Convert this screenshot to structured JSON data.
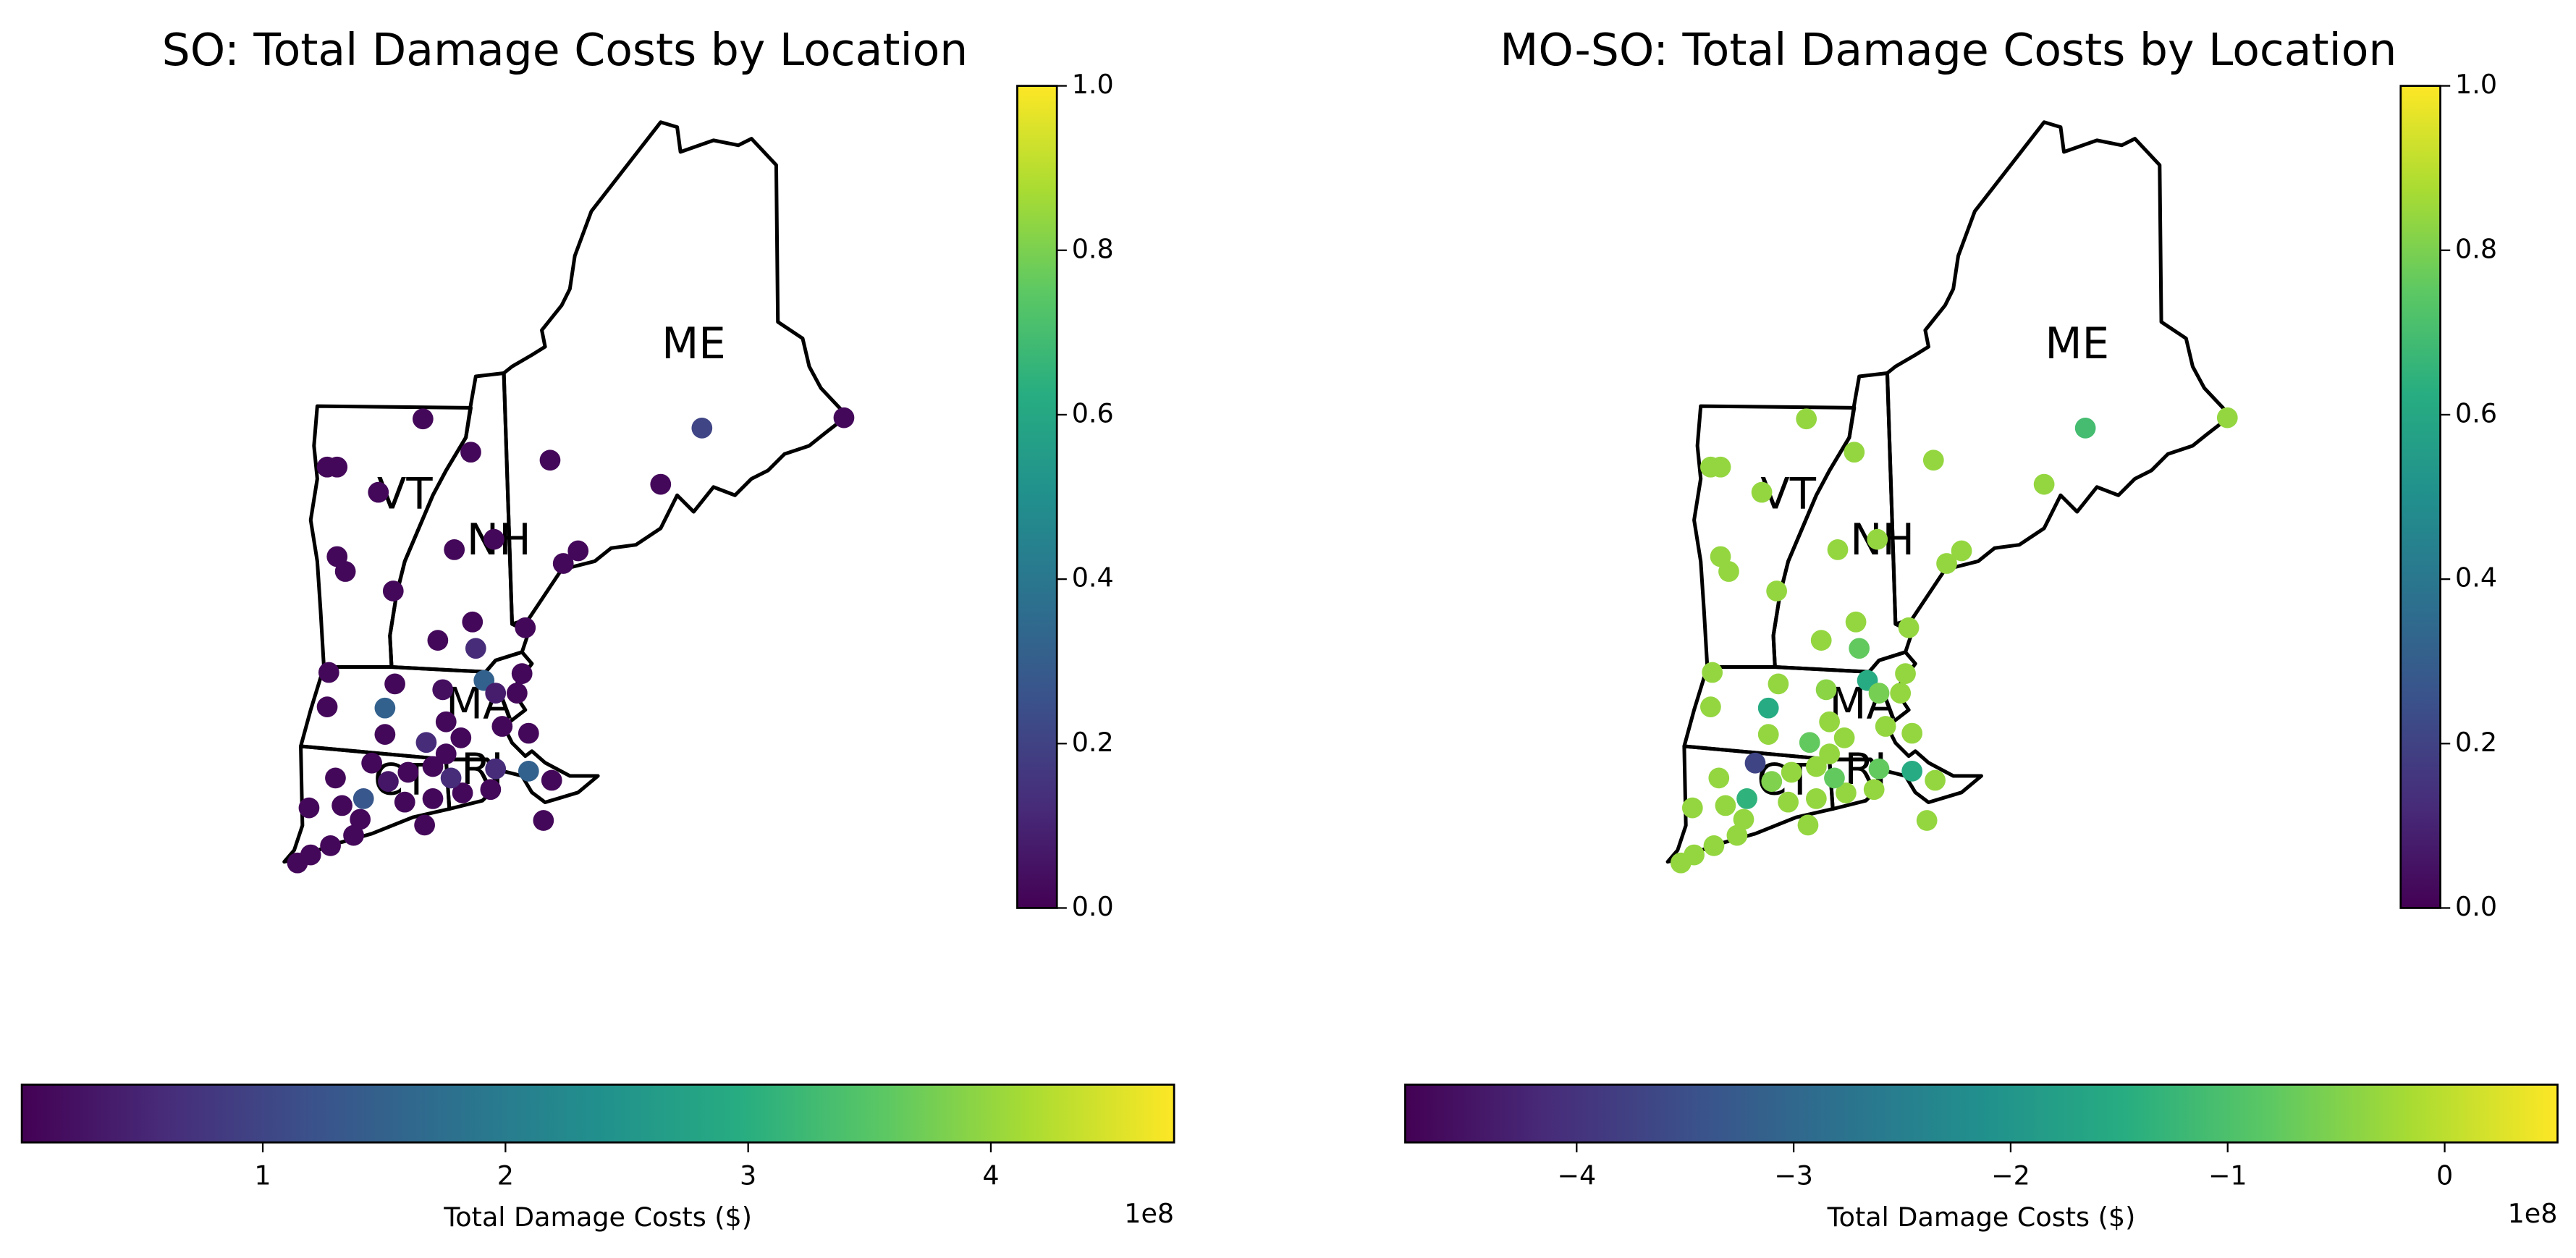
{
  "chart_data": [
    {
      "type": "scatter",
      "title": "SO: Total Damage Costs by Location",
      "colormap": "viridis",
      "lon": [
        -72.08,
        -73.24,
        -73.12,
        -71.5,
        -70.54,
        -68.7,
        -66.98,
        -69.2,
        -72.62,
        -71.22,
        -71.7,
        -73.12,
        -73.02,
        -70.38,
        -70.2,
        -72.44,
        -71.48,
        -71.9,
        -71.44,
        -70.84,
        -73.22,
        -72.42,
        -71.34,
        -70.88,
        -73.24,
        -72.54,
        -71.84,
        -70.94,
        -71.8,
        -71.12,
        -72.54,
        -72.7,
        -72.04,
        -71.62,
        -70.8,
        -71.8,
        -72.26,
        -73.14,
        -71.96,
        -70.8,
        -70.52,
        -71.2,
        -71.6,
        -71.26,
        -72.8,
        -73.46,
        -73.06,
        -72.3,
        -71.96,
        -72.84,
        -72.06,
        -70.62,
        -72.92,
        -73.2,
        -73.44,
        -73.6,
        -71.2,
        -71.74,
        -72.5
      ],
      "lat": [
        44.86,
        44.44,
        44.44,
        44.57,
        44.5,
        44.78,
        44.87,
        44.29,
        44.22,
        43.81,
        43.72,
        43.66,
        43.53,
        43.6,
        43.71,
        43.36,
        43.09,
        42.93,
        42.86,
        43.04,
        42.65,
        42.55,
        42.58,
        42.64,
        42.35,
        42.34,
        42.5,
        42.47,
        42.22,
        42.18,
        42.11,
        41.86,
        42.04,
        42.08,
        42.12,
        41.94,
        41.78,
        41.73,
        41.83,
        41.79,
        41.71,
        41.81,
        41.6,
        41.63,
        41.55,
        41.47,
        41.49,
        41.52,
        41.55,
        41.37,
        41.32,
        41.36,
        41.23,
        41.14,
        41.06,
        40.99,
        42.47,
        41.73,
        41.7
      ],
      "values": [
        10000000,
        10000000,
        10000000,
        10000000,
        10000000,
        100000000,
        10000000,
        10000000,
        10000000,
        10000000,
        10000000,
        10000000,
        10000000,
        10000000,
        10000000,
        10000000,
        10000000,
        10000000,
        60000000,
        10000000,
        10000000,
        10000000,
        150000000,
        10000000,
        10000000,
        150000000,
        20000000,
        10000000,
        10000000,
        10000000,
        10000000,
        10000000,
        60000000,
        10000000,
        10000000,
        10000000,
        10000000,
        10000000,
        10000000,
        150000000,
        10000000,
        60000000,
        10000000,
        10000000,
        130000000,
        10000000,
        10000000,
        10000000,
        10000000,
        10000000,
        10000000,
        10000000,
        10000000,
        10000000,
        10000000,
        10000000,
        40000000,
        60000000,
        30000000
      ],
      "states": [
        {
          "label": "ME",
          "lon": -68.8,
          "lat": 45.49
        },
        {
          "label": "VT",
          "lon": -72.3,
          "lat": 44.18
        },
        {
          "label": "NH",
          "lon": -71.16,
          "lat": 43.78
        },
        {
          "label": "MA",
          "lon": -71.4,
          "lat": 42.35
        },
        {
          "label": "CT",
          "lon": -72.34,
          "lat": 41.69
        },
        {
          "label": "RI",
          "lon": -71.36,
          "lat": 41.78
        }
      ],
      "clim": [
        700000,
        475500000
      ],
      "colorbar_ticks": [
        {
          "value": 100000000,
          "label": "1"
        },
        {
          "value": 200000000,
          "label": "2"
        },
        {
          "value": 300000000,
          "label": "3"
        },
        {
          "value": 400000000,
          "label": "4"
        }
      ],
      "colorbar_label": "Total Damage Costs ($)",
      "colorbar_offset": "1e8",
      "side_colorbar_lim": [
        0,
        1
      ],
      "side_colorbar_ticks": [
        {
          "value": 0,
          "label": "0.0"
        },
        0.2,
        0.4,
        0.6,
        0.8,
        {
          "value": 1,
          "label": "1.0"
        }
      ]
    },
    {
      "type": "scatter",
      "title": "MO-SO: Total Damage Costs by Location",
      "colormap": "viridis",
      "lon": [
        -72.08,
        -73.24,
        -73.12,
        -71.5,
        -70.54,
        -68.7,
        -66.98,
        -69.2,
        -72.62,
        -71.22,
        -71.7,
        -73.12,
        -73.02,
        -70.38,
        -70.2,
        -72.44,
        -71.48,
        -71.9,
        -71.44,
        -70.84,
        -73.22,
        -72.42,
        -71.34,
        -70.88,
        -73.24,
        -72.54,
        -71.84,
        -70.94,
        -71.8,
        -71.12,
        -72.54,
        -72.7,
        -72.04,
        -71.62,
        -70.8,
        -71.8,
        -72.26,
        -73.14,
        -71.96,
        -70.8,
        -70.52,
        -71.2,
        -71.6,
        -71.26,
        -72.8,
        -73.46,
        -73.06,
        -72.3,
        -71.96,
        -72.84,
        -72.06,
        -70.62,
        -72.92,
        -73.2,
        -73.44,
        -73.6,
        -71.2,
        -71.74,
        -72.5
      ],
      "lat": [
        44.86,
        44.44,
        44.44,
        44.57,
        44.5,
        44.78,
        44.87,
        44.29,
        44.22,
        43.81,
        43.72,
        43.66,
        43.53,
        43.6,
        43.71,
        43.36,
        43.09,
        42.93,
        42.86,
        43.04,
        42.65,
        42.55,
        42.58,
        42.64,
        42.35,
        42.34,
        42.5,
        42.47,
        42.22,
        42.18,
        42.11,
        41.86,
        42.04,
        42.08,
        42.12,
        41.94,
        41.78,
        41.73,
        41.83,
        41.79,
        41.71,
        41.81,
        41.6,
        41.63,
        41.55,
        41.47,
        41.49,
        41.52,
        41.55,
        41.37,
        41.32,
        41.36,
        41.23,
        41.14,
        41.06,
        40.99,
        42.47,
        41.73,
        41.7
      ],
      "values": [
        -33500000,
        -33500000,
        -33500000,
        -33500000,
        -33500000,
        -110000000,
        -33500000,
        -33500000,
        -33500000,
        -33500000,
        -33500000,
        -33500000,
        -33500000,
        -33500000,
        -33500000,
        -33500000,
        -33500000,
        -33500000,
        -76000000,
        -33500000,
        -33500000,
        -33500000,
        -152500000,
        -33500000,
        -33500000,
        -152500000,
        -42000000,
        -33500000,
        -33500000,
        -33500000,
        -33500000,
        -370000000,
        -76000000,
        -33500000,
        -33500000,
        -33500000,
        -33500000,
        -33500000,
        -33500000,
        -152500000,
        -33500000,
        -76000000,
        -33500000,
        -33500000,
        -135500000,
        -33500000,
        -33500000,
        -33500000,
        -33500000,
        -33500000,
        -33500000,
        -33500000,
        -33500000,
        -33500000,
        -33500000,
        -33500000,
        -59000000,
        -76000000,
        -50500000
      ],
      "states": [
        {
          "label": "ME",
          "lon": -68.8,
          "lat": 45.49
        },
        {
          "label": "VT",
          "lon": -72.3,
          "lat": 44.18
        },
        {
          "label": "NH",
          "lon": -71.16,
          "lat": 43.78
        },
        {
          "label": "MA",
          "lon": -71.4,
          "lat": 42.35
        },
        {
          "label": "CT",
          "lon": -72.34,
          "lat": 41.69
        },
        {
          "label": "RI",
          "lon": -71.36,
          "lat": 41.78
        }
      ],
      "clim": [
        -479000000,
        52000000
      ],
      "colorbar_ticks": [
        {
          "value": -400000000,
          "label": "−4"
        },
        {
          "value": -300000000,
          "label": "−3"
        },
        {
          "value": -200000000,
          "label": "−2"
        },
        {
          "value": -100000000,
          "label": "−1"
        },
        0
      ],
      "colorbar_label": "Total Damage Costs ($)",
      "colorbar_offset": "1e8",
      "side_colorbar_lim": [
        0,
        1
      ],
      "side_colorbar_ticks": [
        {
          "value": 0,
          "label": "0.0"
        },
        0.2,
        0.4,
        0.6,
        0.8,
        {
          "value": 1,
          "label": "1.0"
        }
      ]
    }
  ]
}
